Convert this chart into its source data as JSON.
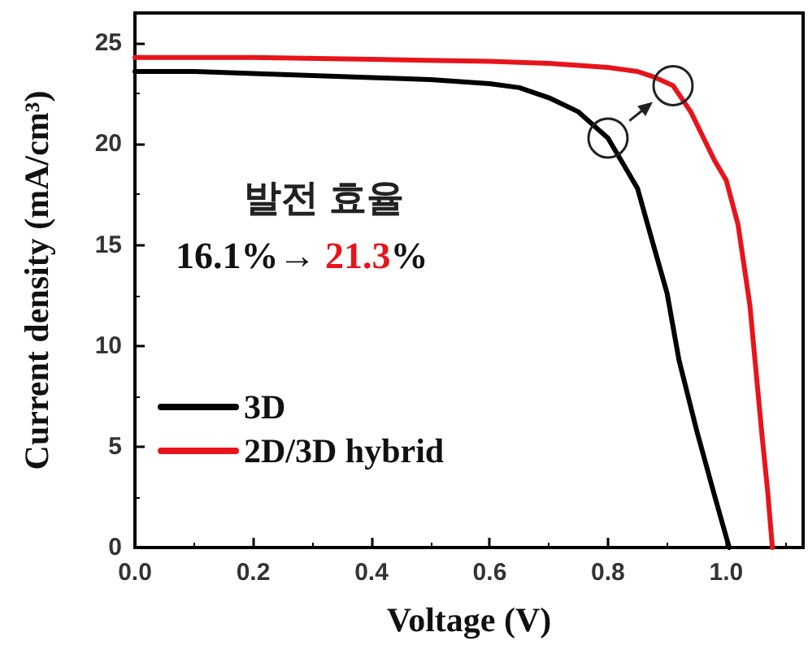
{
  "chart_data": {
    "type": "line",
    "xlabel": "Voltage (V)",
    "ylabel": "Current density (mA/cm³)",
    "xlim": [
      0,
      1.13
    ],
    "ylim": [
      0,
      26.5
    ],
    "xticks": [
      {
        "value": 0,
        "label": "0.0"
      },
      0.2,
      0.4,
      0.6,
      0.8,
      {
        "value": 1,
        "label": "1.0"
      }
    ],
    "yticks": [
      0,
      5,
      10,
      15,
      20,
      25
    ],
    "series": [
      {
        "name": "3D",
        "color": "#000000",
        "x": [
          0,
          0.1,
          0.2,
          0.3,
          0.4,
          0.5,
          0.6,
          0.65,
          0.7,
          0.75,
          0.8,
          0.85,
          0.87,
          0.9,
          0.92,
          0.95,
          0.98,
          1.005
        ],
        "values": [
          23.6,
          23.6,
          23.5,
          23.4,
          23.3,
          23.2,
          23.0,
          22.8,
          22.3,
          21.6,
          20.3,
          17.8,
          15.7,
          12.6,
          9.3,
          5.8,
          2.6,
          0
        ]
      },
      {
        "name": "2D/3D hybrid",
        "color": "#e8141b",
        "x": [
          0,
          0.2,
          0.4,
          0.6,
          0.7,
          0.8,
          0.85,
          0.88,
          0.91,
          0.94,
          0.96,
          0.98,
          1.0,
          1.02,
          1.04,
          1.06,
          1.07,
          1.078
        ],
        "values": [
          24.3,
          24.3,
          24.2,
          24.1,
          24.0,
          23.8,
          23.6,
          23.3,
          22.9,
          21.6,
          20.4,
          19.2,
          18.2,
          16.0,
          12.0,
          5.7,
          2.8,
          0
        ]
      }
    ],
    "annotations": [
      "발전 효율",
      "16.1%→ ",
      "21.3",
      "%"
    ],
    "legend": "bottom left",
    "grid": false,
    "marker": "none",
    "line_style": "solid"
  }
}
